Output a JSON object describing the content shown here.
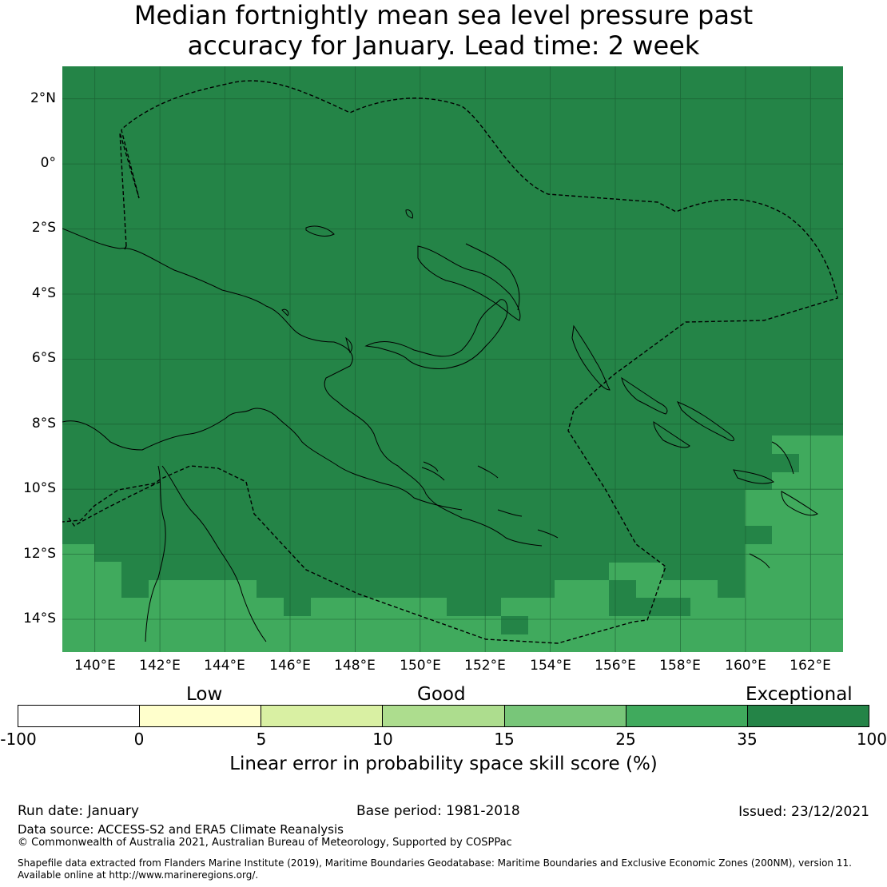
{
  "title_line1": "Median fortnightly mean sea level pressure past",
  "title_line2": "accuracy for January. Lead time: 2 week",
  "map": {
    "lon_min": 139,
    "lon_max": 163,
    "lat_min": -15,
    "lat_max": 3,
    "lat_labels": [
      "2°N",
      "0°",
      "2°S",
      "4°S",
      "6°S",
      "8°S",
      "10°S",
      "12°S",
      "14°S"
    ],
    "lon_labels": [
      "140°E",
      "142°E",
      "144°E",
      "146°E",
      "148°E",
      "150°E",
      "152°E",
      "154°E",
      "156°E",
      "158°E",
      "160°E",
      "162°E"
    ],
    "colors": {
      "exceptional": "#248447",
      "high": "#40aa5d",
      "grid": "#1a5a30"
    }
  },
  "colorbar": {
    "category_labels": [
      "Low",
      "Good",
      "Exceptional"
    ],
    "ticks": [
      "-100",
      "0",
      "5",
      "10",
      "15",
      "25",
      "35",
      "100"
    ],
    "colors": [
      "#ffffff",
      "#ffffcc",
      "#d9f0a3",
      "#addd8e",
      "#78c679",
      "#40aa5d",
      "#248447"
    ],
    "label": "Linear error in probability space skill score (%)"
  },
  "footer": {
    "run_date": "Run date: January",
    "base_period": "Base period: 1981-2018",
    "issued": "Issued: 23/12/2021",
    "data_source": "Data source: ACCESS-S2 and ERA5 Climate Reanalysis",
    "copyright": "© Commonwealth of Australia 2021, Australian Bureau of Meteorology, Supported by COSPPac",
    "shapefile_line1": "Shapefile data extracted from Flanders Marine Institute (2019), Maritime Boundaries Geodatabase: Maritime Boundaries and Exclusive Economic Zones (200NM), version 11.",
    "shapefile_line2": "Available online at http://www.marineregions.org/."
  }
}
